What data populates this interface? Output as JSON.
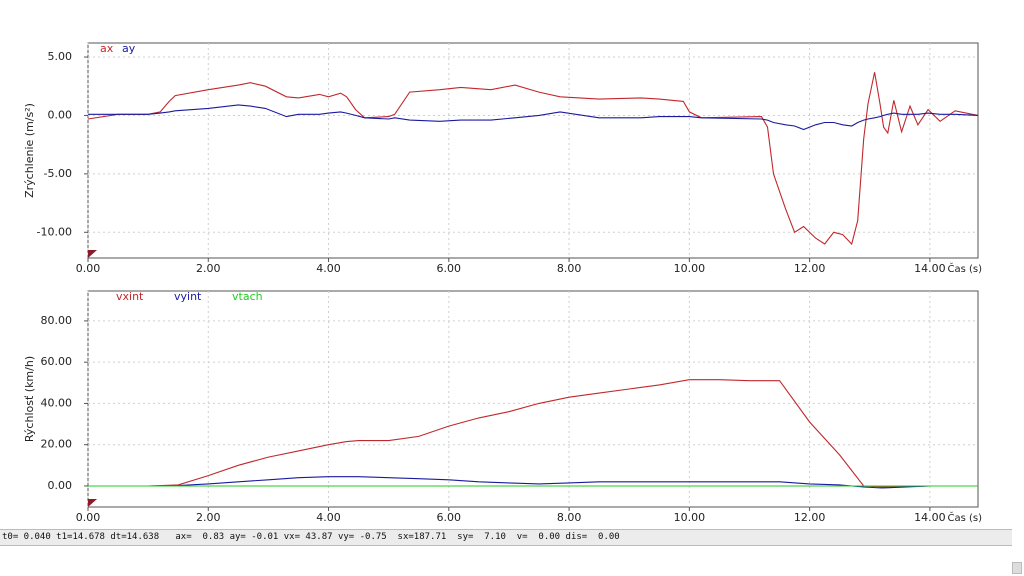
{
  "chart_data": [
    {
      "type": "line",
      "y_label": "Zrýchlenie (m/s²)",
      "x_label": "Čas (s)",
      "x": [
        0,
        0.5,
        1.0,
        1.2,
        1.35,
        1.45,
        2.0,
        2.5,
        2.7,
        2.95,
        3.3,
        3.5,
        3.85,
        4.0,
        4.2,
        4.3,
        4.45,
        4.6,
        5.0,
        5.1,
        5.35,
        5.85,
        6.2,
        6.7,
        7.1,
        7.5,
        7.85,
        8.5,
        9.2,
        9.5,
        9.9,
        10.0,
        10.2,
        11.2,
        11.3,
        11.4,
        11.6,
        11.75,
        11.9,
        12.1,
        12.25,
        12.4,
        12.55,
        12.7,
        12.8,
        12.9,
        12.97,
        13.08,
        13.17,
        13.23,
        13.3,
        13.4,
        13.53,
        13.67,
        13.8,
        13.97,
        14.17,
        14.42,
        14.8
      ],
      "series": [
        {
          "name": "ax",
          "color": "#c0282d",
          "values": [
            -0.3,
            0.1,
            0.1,
            0.3,
            1.2,
            1.7,
            2.2,
            2.6,
            2.8,
            2.5,
            1.6,
            1.5,
            1.8,
            1.6,
            1.9,
            1.6,
            0.5,
            -0.2,
            -0.1,
            0.1,
            2.0,
            2.2,
            2.4,
            2.2,
            2.6,
            2.0,
            1.6,
            1.4,
            1.5,
            1.4,
            1.2,
            0.3,
            -0.2,
            -0.1,
            -1.0,
            -5.0,
            -8.0,
            -10.0,
            -9.5,
            -10.5,
            -11.0,
            -10.0,
            -10.2,
            -11.0,
            -9.0,
            -2.0,
            1.0,
            3.7,
            1.0,
            -1.0,
            -1.5,
            1.3,
            -1.4,
            0.8,
            -0.8,
            0.5,
            -0.5,
            0.4,
            0.0
          ]
        },
        {
          "name": "ay",
          "color": "#1a1aa0",
          "values": [
            0.1,
            0.1,
            0.1,
            0.2,
            0.3,
            0.4,
            0.6,
            0.9,
            0.8,
            0.6,
            -0.1,
            0.1,
            0.1,
            0.2,
            0.3,
            0.2,
            0.0,
            -0.2,
            -0.3,
            -0.2,
            -0.4,
            -0.5,
            -0.4,
            -0.4,
            -0.2,
            0.0,
            0.3,
            -0.2,
            -0.2,
            -0.1,
            -0.1,
            -0.1,
            -0.2,
            -0.3,
            -0.4,
            -0.6,
            -0.8,
            -0.9,
            -1.2,
            -0.8,
            -0.6,
            -0.6,
            -0.8,
            -0.9,
            -0.6,
            -0.4,
            -0.3,
            -0.2,
            -0.1,
            0.0,
            0.1,
            0.2,
            0.1,
            0.1,
            0.1,
            0.2,
            0.1,
            0.1,
            0.0
          ]
        }
      ],
      "xlim": [
        0,
        14.8
      ],
      "ylim": [
        -12.2,
        6.2
      ],
      "xticks": [
        {
          "value": 0,
          "label": "0.00"
        },
        {
          "value": 2,
          "label": "2.00"
        },
        {
          "value": 4,
          "label": "4.00"
        },
        {
          "value": 6,
          "label": "6.00"
        },
        {
          "value": 8,
          "label": "8.00"
        },
        {
          "value": 10,
          "label": "10.00"
        },
        {
          "value": 12,
          "label": "12.00"
        },
        {
          "value": 14,
          "label": "14.00"
        }
      ],
      "yticks": [
        {
          "value": -10,
          "label": "-10.00"
        },
        {
          "value": -5,
          "label": "-5.00"
        },
        {
          "value": 0,
          "label": "0.00"
        },
        {
          "value": 5,
          "label": "5.00"
        }
      ],
      "grid": true
    },
    {
      "type": "line",
      "y_label": "Rýchlosť (km/h)",
      "x_label": "Čas (s)",
      "x": [
        0,
        1,
        1.5,
        2,
        2.5,
        3,
        3.5,
        4,
        4.3,
        4.5,
        5,
        5.5,
        6,
        6.5,
        7,
        7.5,
        8,
        8.5,
        9,
        9.5,
        10,
        10.5,
        11,
        11.5,
        12,
        12.5,
        12.9,
        13.2,
        14,
        14.8
      ],
      "series": [
        {
          "name": "vxint",
          "color": "#c0282d",
          "values": [
            0,
            0,
            0.5,
            5,
            10,
            14,
            17,
            20,
            21.5,
            22,
            22,
            24,
            29,
            33,
            36,
            40,
            43,
            45,
            47,
            49,
            51.5,
            51.5,
            51,
            51,
            31,
            15,
            0,
            -0.5,
            0,
            0
          ]
        },
        {
          "name": "vyint",
          "color": "#1a1aa0",
          "values": [
            0,
            0,
            0.2,
            1,
            2,
            3,
            4,
            4.5,
            4.5,
            4.5,
            4,
            3.5,
            3,
            2,
            1.5,
            1,
            1.5,
            2,
            2,
            2,
            2,
            2,
            2,
            2,
            1,
            0.5,
            -0.5,
            -1,
            0,
            0
          ]
        },
        {
          "name": "vtach",
          "color": "#22cc22",
          "values": [
            0,
            0,
            0,
            0,
            0,
            0,
            0,
            0,
            0,
            0,
            0,
            0,
            0,
            0,
            0,
            0,
            0,
            0,
            0,
            0,
            0,
            0,
            0,
            0,
            0,
            0,
            0,
            0,
            0,
            0
          ]
        }
      ],
      "xlim": [
        0,
        14.8
      ],
      "ylim": [
        -10.2,
        94.5
      ],
      "xticks": [
        {
          "value": 0,
          "label": "0.00"
        },
        {
          "value": 2,
          "label": "2.00"
        },
        {
          "value": 4,
          "label": "4.00"
        },
        {
          "value": 6,
          "label": "6.00"
        },
        {
          "value": 8,
          "label": "8.00"
        },
        {
          "value": 10,
          "label": "10.00"
        },
        {
          "value": 12,
          "label": "12.00"
        },
        {
          "value": 14,
          "label": "14.00"
        }
      ],
      "yticks": [
        {
          "value": 0,
          "label": "0.00"
        },
        {
          "value": 20,
          "label": "20.00"
        },
        {
          "value": 40,
          "label": "40.00"
        },
        {
          "value": 60,
          "label": "60.00"
        },
        {
          "value": 80,
          "label": "80.00"
        }
      ],
      "grid": true
    }
  ],
  "status_bar": {
    "text": "t0= 0.040 t1=14.678 dt=14.638   ax=  0.83 ay= -0.01 vx= 43.87 vy= -0.75  sx=187.71  sy=  7.10  v=  0.00 dis=  0.00"
  }
}
